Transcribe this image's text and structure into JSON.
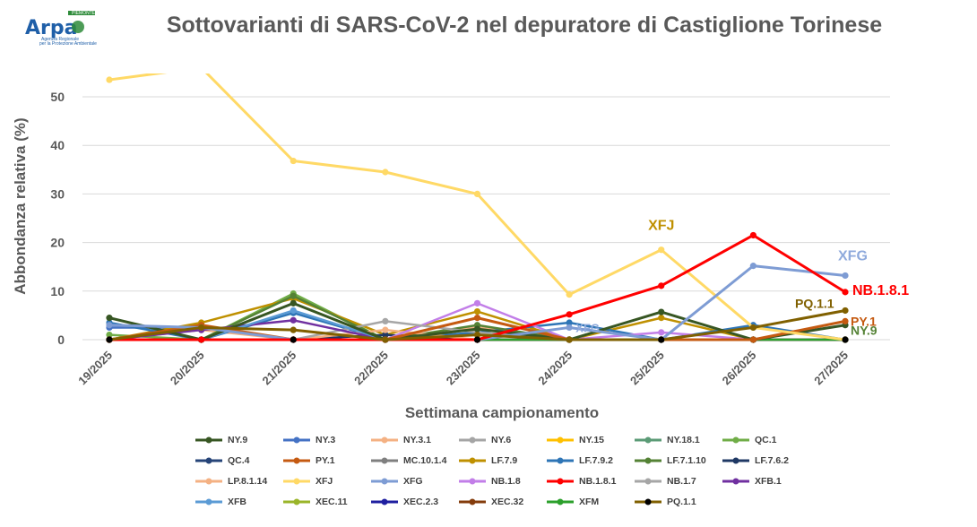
{
  "logo": {
    "text": "Arpa",
    "sub1": "PIEMONTE",
    "sub2": "Agenzia Regionale",
    "sub3": "per la Protezione Ambientale"
  },
  "chart_data": {
    "type": "line",
    "title": "Sottovarianti di SARS-CoV-2 nel depuratore di Castiglione Torinese",
    "xlabel": "Settimana campionamento",
    "ylabel": "Abbondanza relativa (%)",
    "ylim": [
      0,
      55
    ],
    "yticks": [
      0,
      10,
      20,
      30,
      40,
      50
    ],
    "grid": true,
    "legend_position": "bottom",
    "categories": [
      "19/2025",
      "20/2025",
      "21/2025",
      "22/2025",
      "23/2025",
      "24/2025",
      "25/2025",
      "26/2025",
      "27/2025"
    ],
    "series": [
      {
        "name": "NY.9",
        "color": "#375623",
        "values": [
          4.5,
          0,
          7.5,
          0,
          2.2,
          0,
          5.7,
          0,
          3.0
        ],
        "end_label": "NY.9",
        "end_label_color": "#548235"
      },
      {
        "name": "NY.3",
        "color": "#4472c4",
        "values": [
          2.5,
          2.5,
          0,
          0,
          0,
          0,
          0,
          0,
          0
        ]
      },
      {
        "name": "NY.3.1",
        "color": "#f4b183",
        "values": [
          0,
          2.0,
          0,
          0,
          2.5,
          0,
          0,
          0,
          0
        ]
      },
      {
        "name": "NY.6",
        "color": "#a5a5a5",
        "values": [
          0,
          0,
          0,
          0,
          0,
          0,
          0,
          0,
          0
        ]
      },
      {
        "name": "NY.15",
        "color": "#ffc000",
        "values": [
          0,
          0,
          0,
          0,
          0,
          0,
          0,
          0,
          0
        ]
      },
      {
        "name": "NY.18.1",
        "color": "#5b9b76",
        "values": [
          0,
          0,
          0,
          0,
          0,
          0,
          0,
          0,
          0
        ]
      },
      {
        "name": "QC.1",
        "color": "#70ad47",
        "values": [
          1.0,
          0,
          9.5,
          0,
          0,
          0,
          0,
          0,
          0
        ]
      },
      {
        "name": "QC.4",
        "color": "#264478",
        "values": [
          0,
          0,
          0,
          0,
          0,
          0,
          0,
          0,
          0
        ]
      },
      {
        "name": "PY.1",
        "color": "#c55a11",
        "values": [
          0,
          3.0,
          0,
          0,
          4.5,
          0,
          0,
          0,
          3.8
        ],
        "end_label": "PY.1",
        "end_label_color": "#c55a11"
      },
      {
        "name": "MC.10.1.4",
        "color": "#7f7f7f",
        "values": [
          0,
          0,
          0,
          0,
          0,
          0,
          0,
          0,
          0
        ]
      },
      {
        "name": "LF.7.9",
        "color": "#bf9000",
        "values": [
          0,
          3.5,
          8.5,
          1.0,
          5.8,
          0,
          4.5,
          0,
          0
        ]
      },
      {
        "name": "LF.7.9.2",
        "color": "#2e75b6",
        "values": [
          3.5,
          0,
          5.5,
          0,
          1.5,
          3.5,
          0,
          3.0,
          0
        ]
      },
      {
        "name": "LF.7.1.10",
        "color": "#548235",
        "values": [
          0,
          0,
          9.0,
          0,
          3.0,
          0,
          0,
          0,
          0
        ]
      },
      {
        "name": "LF.7.6.2",
        "color": "#1f3864",
        "values": [
          0,
          0,
          0,
          1.0,
          0,
          0,
          0,
          0,
          0
        ]
      },
      {
        "name": "LP.8.1.14",
        "color": "#f4b183",
        "values": [
          0,
          0,
          0,
          2.0,
          0,
          0,
          0,
          0,
          0
        ]
      },
      {
        "name": "XFJ",
        "color": "#ffd966",
        "values": [
          53.5,
          56.0,
          36.8,
          34.5,
          30.0,
          9.3,
          18.5,
          2.5,
          0
        ],
        "end_label": "XFJ",
        "end_label_color": "#bf9000"
      },
      {
        "name": "XFG",
        "color": "#7e9cd4",
        "values": [
          3.0,
          2.5,
          0,
          0,
          0,
          2.5,
          0,
          15.2,
          13.2
        ],
        "end_label": "XFG",
        "end_label_color": "#8faadc"
      },
      {
        "name": "NB.1.8",
        "color": "#c27ee8",
        "values": [
          0,
          0,
          0,
          0,
          7.5,
          0,
          1.5,
          0,
          0
        ]
      },
      {
        "name": "NB.1.8.1",
        "color": "#ff0000",
        "values": [
          0,
          0,
          0,
          0,
          0,
          5.2,
          11.1,
          21.5,
          9.8
        ],
        "end_label": "NB.1.8.1",
        "end_label_color": "#ff0000"
      },
      {
        "name": "NB.1.7",
        "color": "#a6a6a6",
        "values": [
          0,
          0,
          0,
          3.8,
          1.5,
          0,
          0,
          0,
          0
        ]
      },
      {
        "name": "XFB.1",
        "color": "#7030a0",
        "values": [
          0,
          2.0,
          4.0,
          0,
          0,
          0,
          0,
          0,
          0
        ]
      },
      {
        "name": "XFB",
        "color": "#5b9bd5",
        "values": [
          0,
          0,
          6.0,
          0,
          0,
          0,
          0,
          0,
          0
        ]
      },
      {
        "name": "XEC.11",
        "color": "#9ab529",
        "values": [
          0,
          0,
          0,
          0,
          0,
          0,
          0,
          0,
          0
        ]
      },
      {
        "name": "XEC.2.3",
        "color": "#1f1fa0",
        "values": [
          0,
          0,
          0,
          0,
          0,
          0,
          0,
          0,
          0
        ]
      },
      {
        "name": "XEC.32",
        "color": "#843c0c",
        "values": [
          0,
          0,
          0,
          0,
          0,
          0,
          0,
          0,
          0
        ]
      },
      {
        "name": "XFM",
        "color": "#2ca02c",
        "values": [
          0,
          0,
          0,
          0,
          0,
          0,
          0,
          0,
          0
        ]
      },
      {
        "name": "PQ.1.1",
        "color": "#806000",
        "values": [
          0,
          2.5,
          2.0,
          0,
          1.0,
          0,
          0,
          2.5,
          6.0
        ],
        "end_label": "PQ.1.1",
        "end_label_color": "#806000"
      }
    ],
    "annotations": [
      {
        "text": "XFJ",
        "category_index": 6,
        "value": 23.5,
        "color": "#bf9000"
      },
      {
        "text": "XFG",
        "category_index": 5.2,
        "value": 2.5,
        "color": "#8faadc"
      }
    ]
  }
}
